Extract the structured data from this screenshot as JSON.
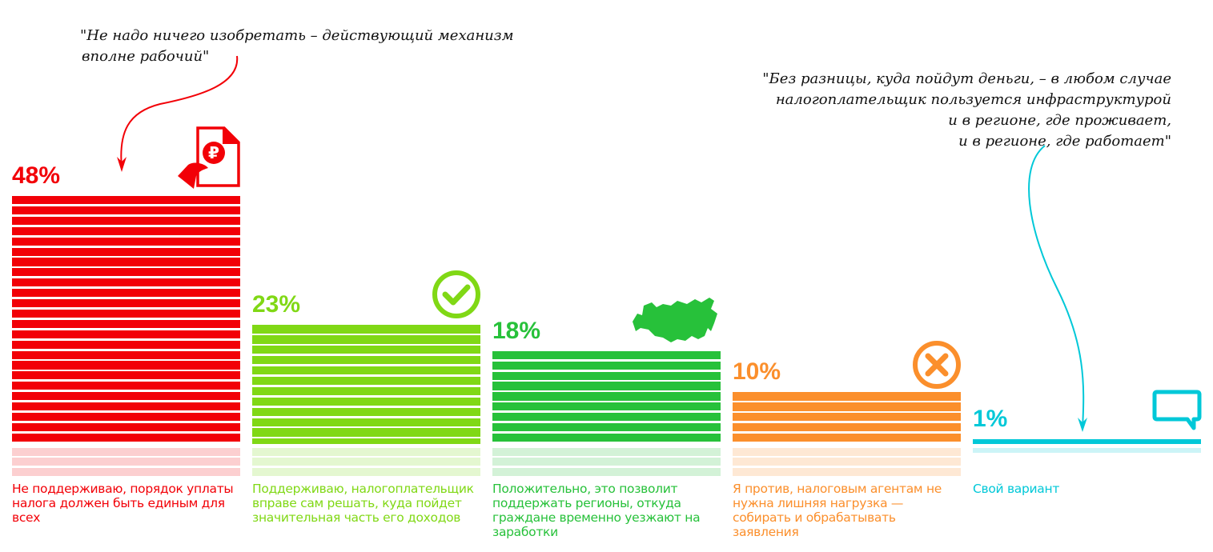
{
  "chart_data": {
    "type": "bar",
    "categories": [
      "Не поддерживаю, порядок уплаты налога должен быть единым для всех",
      "Поддерживаю, налогоплательщик вправе сам решать, куда пойдет значительная часть его доходов",
      "Положительно, это позволит поддержать регионы, откуда граждане временно уезжают на заработки",
      "Я против, налоговым агентам не нужна лишняя нагрузка — собирать и обрабатывать заявления",
      "Свой вариант"
    ],
    "values": [
      48,
      23,
      18,
      10,
      1
    ],
    "value_labels": [
      "48%",
      "23%",
      "18%",
      "10%",
      "1%"
    ],
    "colors": [
      "#f20007",
      "#80d815",
      "#27c13a",
      "#fb8f2c",
      "#00c8d8"
    ],
    "light_colors": [
      "#fccfd0",
      "#e4f7d0",
      "#d3f2d7",
      "#fee8d4",
      "#ccf4f7"
    ],
    "icons": [
      "ruble-document-hand-icon",
      "checkmark-circle-icon",
      "russia-map-icon",
      "cross-circle-icon",
      "speech-bubble-icon"
    ],
    "unit": "%",
    "ylim": [
      0,
      50
    ]
  },
  "quotes": {
    "left": [
      "\"Не надо ничего изобретать – действующий механизм",
      "вполне рабочий\""
    ],
    "right": [
      "\"Без разницы, куда пойдут деньги, – в любом случае",
      "налогоплательщик пользуется инфраструктурой",
      "и в регионе, где проживает,",
      "и в регионе, где работает\""
    ]
  }
}
